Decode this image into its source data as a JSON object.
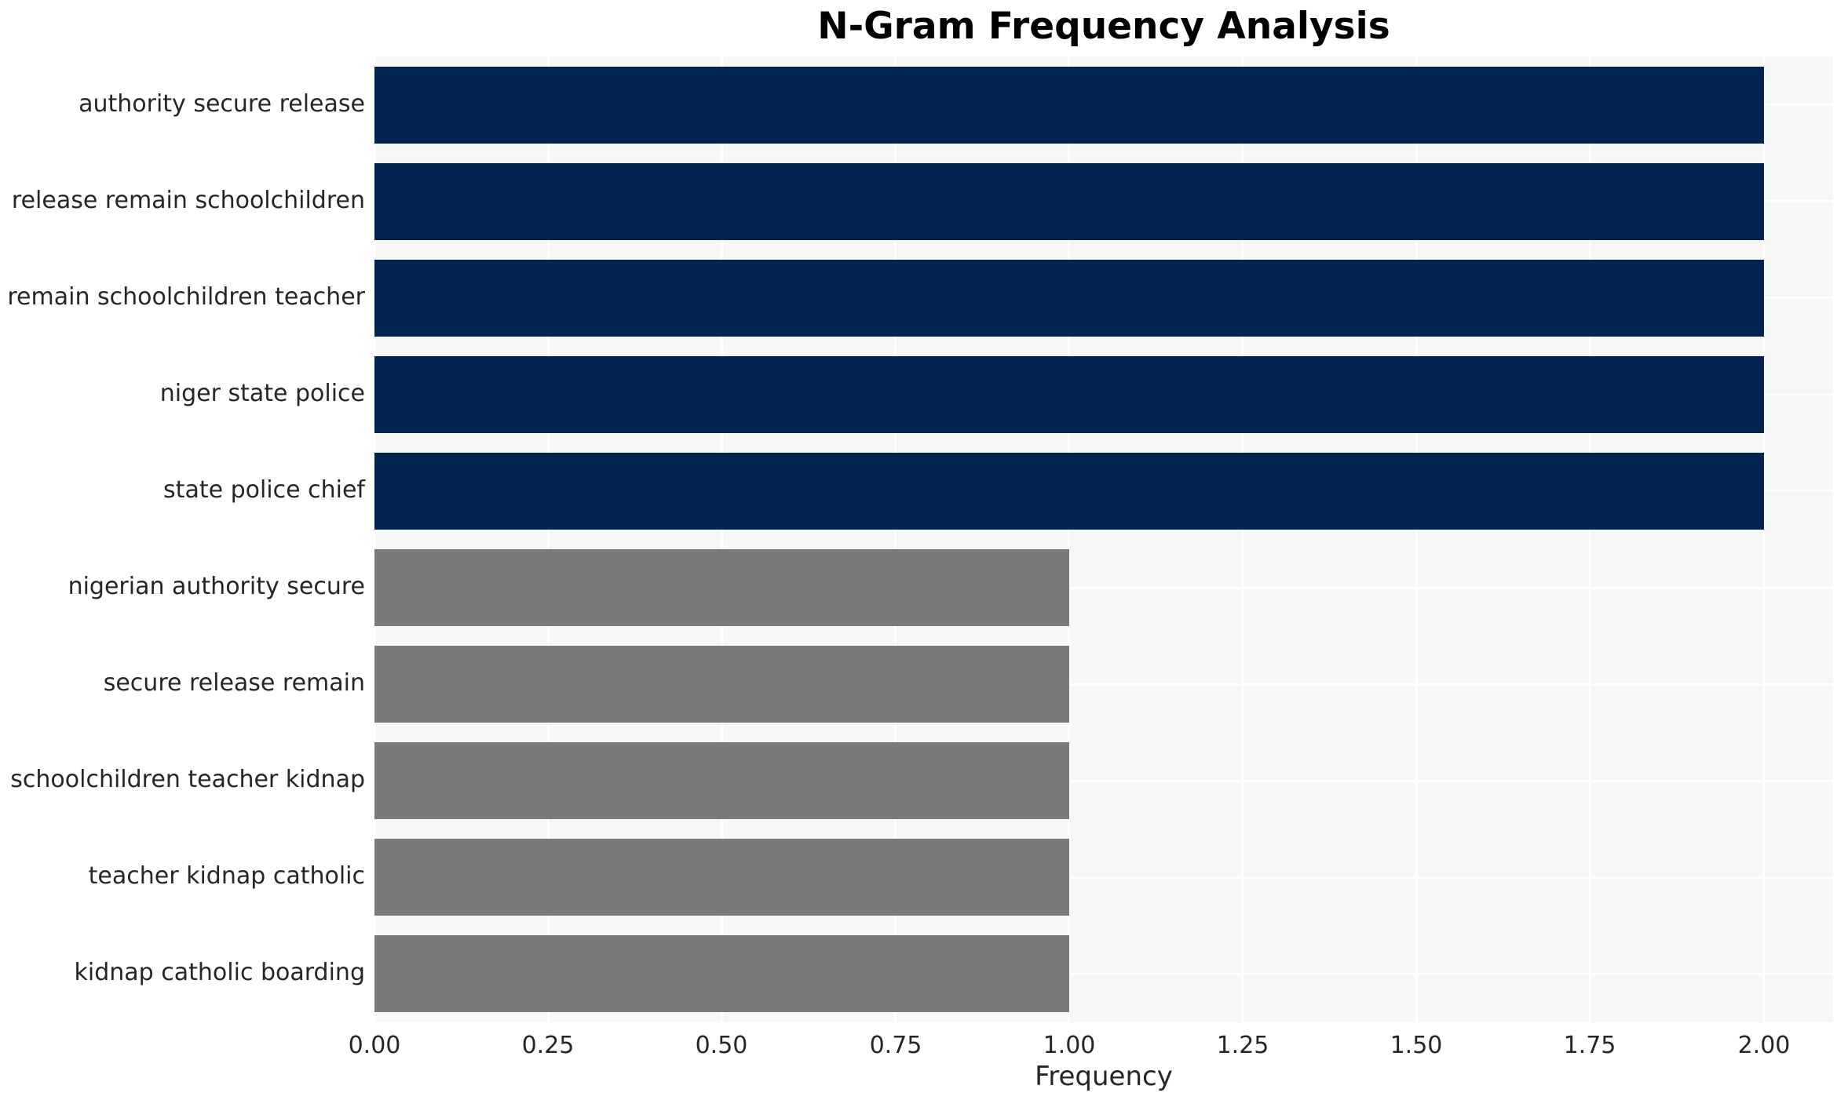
{
  "title": "N-Gram Frequency Analysis",
  "chart_data": {
    "type": "bar",
    "orientation": "horizontal",
    "title": "N-Gram Frequency Analysis",
    "xlabel": "Frequency",
    "ylabel": "",
    "categories": [
      "authority secure release",
      "release remain schoolchildren",
      "remain schoolchildren teacher",
      "niger state police",
      "state police chief",
      "nigerian authority secure",
      "secure release remain",
      "schoolchildren teacher kidnap",
      "teacher kidnap catholic",
      "kidnap catholic boarding"
    ],
    "values": [
      2,
      2,
      2,
      2,
      2,
      1,
      1,
      1,
      1,
      1
    ],
    "bar_colors": [
      "#012550",
      "#012550",
      "#012550",
      "#012550",
      "#012550",
      "#7a7a78",
      "#7a7a78",
      "#7a7a78",
      "#7a7a78",
      "#7a7a78"
    ],
    "xlim": [
      0,
      2.1
    ],
    "xticks": [
      0.0,
      0.25,
      0.5,
      0.75,
      1.0,
      1.25,
      1.5,
      1.75,
      2.0
    ],
    "xtick_labels": [
      "0.00",
      "0.25",
      "0.50",
      "0.75",
      "1.00",
      "1.25",
      "1.50",
      "1.75",
      "2.00"
    ],
    "grid": true,
    "legend": false,
    "colors": {
      "plot_background": "#f7f7f5",
      "grid": "#ffffff",
      "tick_text": "#262626",
      "title_text": "#000000",
      "navy_bar": "#012550",
      "gray_bar": "#7a7a78"
    }
  }
}
